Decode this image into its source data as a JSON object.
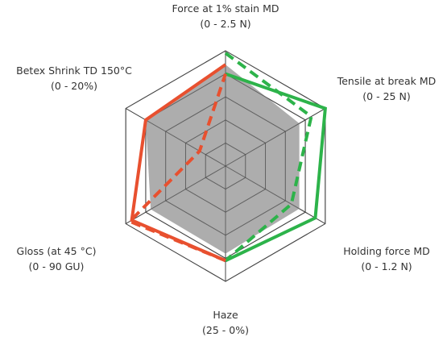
{
  "chart_data": {
    "type": "radar",
    "title": "",
    "grid": true,
    "levels": 5,
    "scale_max": 1.0,
    "axes": [
      {
        "name": "Force at 1% stain MD",
        "range": "(0 - 2.5 N)",
        "min": 0,
        "max": 2.5,
        "unit": "N"
      },
      {
        "name": "Tensile at break MD",
        "range": "(0 - 25 N)",
        "min": 0,
        "max": 25,
        "unit": "N"
      },
      {
        "name": "Holding force MD",
        "range": "(0 - 1.2 N)",
        "min": 0,
        "max": 1.2,
        "unit": "N"
      },
      {
        "name": "Haze",
        "range": "(25 - 0%)",
        "min": 25,
        "max": 0,
        "unit": "%"
      },
      {
        "name": "Gloss (at 45 °C)",
        "range": "(0 - 90 GU)",
        "min": 0,
        "max": 90,
        "unit": "GU"
      },
      {
        "name": "Betex Shrink TD 150°C",
        "range": "(0 - 20%)",
        "min": 0,
        "max": 20,
        "unit": "%"
      }
    ],
    "series": [
      {
        "role": "gray-fill",
        "color": "#a9a9a9",
        "style": "filled",
        "values": [
          0.88,
          0.74,
          0.74,
          0.76,
          0.75,
          0.8
        ]
      },
      {
        "role": "olive-solid",
        "color": "#a0922e",
        "style": "solid",
        "values": [
          0.8,
          null,
          null,
          0.82,
          null,
          null
        ]
      },
      {
        "role": "olive-dashed",
        "color": "#a0922e",
        "style": "dashed",
        "values": [
          0.98,
          null,
          null,
          0.82,
          null,
          null
        ]
      },
      {
        "role": "green-solid",
        "color": "#2db34a",
        "style": "solid",
        "values": [
          0.8,
          1.0,
          0.9,
          0.82,
          null,
          null
        ]
      },
      {
        "role": "green-dashed",
        "color": "#2db34a",
        "style": "dashed",
        "values": [
          0.98,
          0.86,
          0.66,
          0.82,
          null,
          null
        ]
      },
      {
        "role": "red-solid",
        "color": "#e8502f",
        "style": "solid",
        "values": [
          0.88,
          null,
          null,
          0.82,
          0.94,
          0.8
        ]
      },
      {
        "role": "red-dashed",
        "color": "#e8502f",
        "style": "dashed",
        "values": [
          0.8,
          null,
          null,
          0.82,
          0.96,
          0.26
        ]
      }
    ]
  },
  "colors": {
    "grid": "#444444",
    "label": "#333333"
  }
}
